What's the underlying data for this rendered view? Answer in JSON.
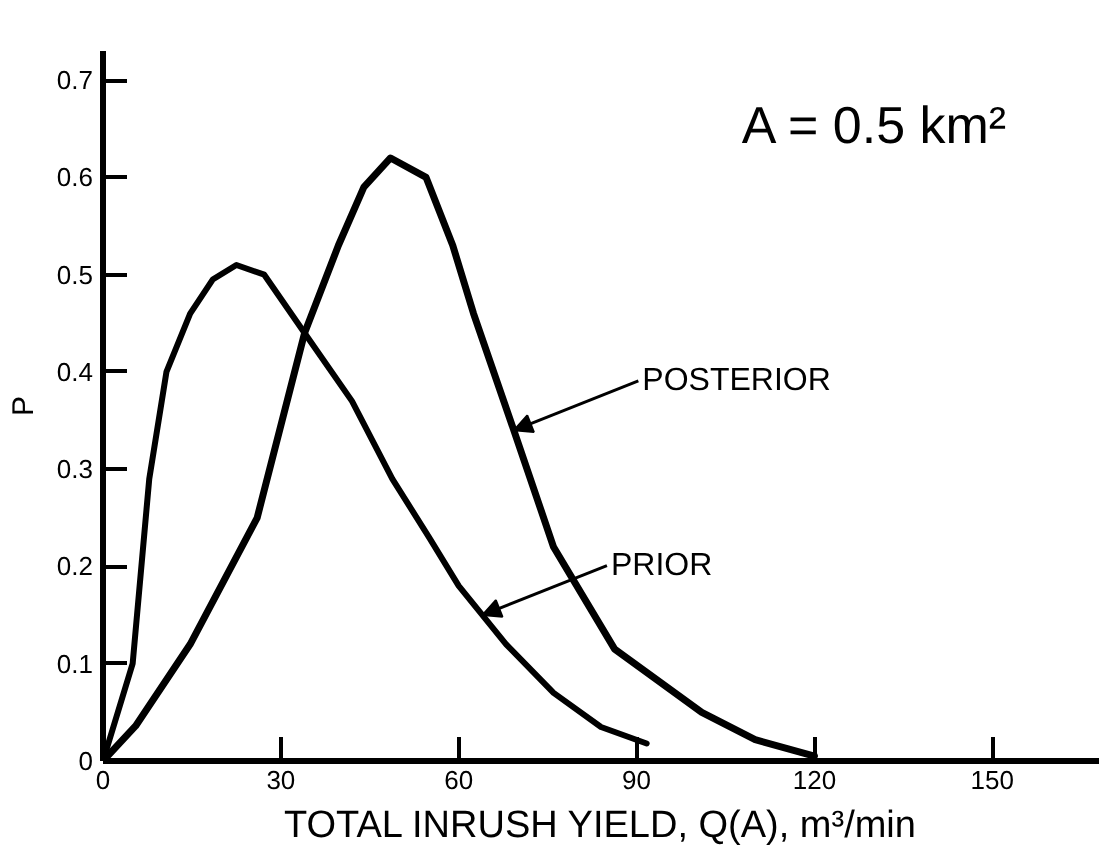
{
  "chart_data": {
    "type": "line",
    "xlabel": "TOTAL INRUSH YIELD, Q(A), m³/min",
    "ylabel": "P",
    "xlim": [
      0,
      168
    ],
    "ylim": [
      0,
      0.73
    ],
    "xticks": [
      0,
      30,
      60,
      90,
      120,
      150
    ],
    "yticks": [
      0,
      0.1,
      0.2,
      0.3,
      0.4,
      0.5,
      0.6,
      0.7
    ],
    "grid": false,
    "marker": "none",
    "line_style": "solid",
    "series": [
      {
        "color": "#000000",
        "x": [
          0,
          5,
          7.8,
          10.7,
          14.7,
          18.5,
          22.5,
          27.2,
          34,
          42,
          48.8,
          55,
          60,
          68,
          76,
          84,
          91.7
        ],
        "values": [
          0,
          0.1,
          0.29,
          0.4,
          0.46,
          0.495,
          0.51,
          0.5,
          0.44,
          0.37,
          0.29,
          0.23,
          0.18,
          0.12,
          0.07,
          0.035,
          0.018
        ]
      },
      {
        "color": "#000000",
        "x": [
          0,
          5.5,
          14.7,
          26,
          34,
          39.7,
          44,
          48.5,
          54.5,
          59,
          62.5,
          69.3,
          76,
          86.3,
          101,
          110,
          120
        ],
        "values": [
          0,
          0.036,
          0.12,
          0.25,
          0.44,
          0.53,
          0.59,
          0.62,
          0.6,
          0.53,
          0.46,
          0.34,
          0.22,
          0.115,
          0.05,
          0.022,
          0.005
        ]
      }
    ],
    "annotations": [
      "A = 0.5 km²",
      {
        "text": "POSTERIOR",
        "x": 69.3,
        "y": 0.34
      },
      {
        "text": "PRIOR",
        "x": 64,
        "y": 0.15
      }
    ]
  }
}
